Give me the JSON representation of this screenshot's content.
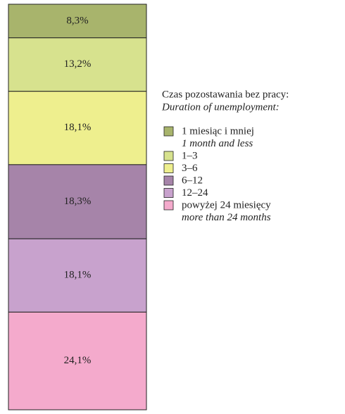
{
  "chart_data": {
    "type": "stacked-bar",
    "legend_title": "Czas pozostawania bez pracy:",
    "legend_subtitle": "Duration of unemployment:",
    "legend_position": "right",
    "series": [
      {
        "name": "1 miesiąc i mniej",
        "name_en": "1 month and less",
        "color": "#a8b46c",
        "values": [
          8.3
        ],
        "value_labels": [
          "8,3%"
        ]
      },
      {
        "name": "1–3",
        "color": "#d7e28e",
        "values": [
          13.2
        ],
        "value_labels": [
          "13,2%"
        ]
      },
      {
        "name": "3–6",
        "color": "#eeef8e",
        "values": [
          18.1
        ],
        "value_labels": [
          "18,1%"
        ]
      },
      {
        "name": "6–12",
        "color": "#a684a9",
        "values": [
          18.3
        ],
        "value_labels": [
          "18,3%"
        ]
      },
      {
        "name": "12–24",
        "color": "#c8a2cd",
        "values": [
          18.1
        ],
        "value_labels": [
          "18,1%"
        ]
      },
      {
        "name": "powyżej 24 miesięcy",
        "name_en": "more than 24 months",
        "color": "#f4aacc",
        "values": [
          24.1
        ],
        "value_labels": [
          "24,1%"
        ]
      }
    ]
  }
}
